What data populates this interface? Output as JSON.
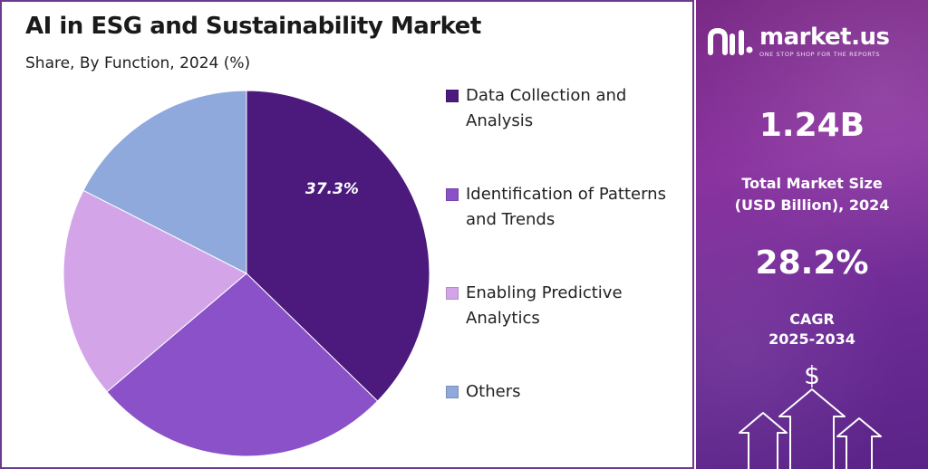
{
  "title": "AI in ESG and Sustainability Market",
  "subtitle": "Share, By Function, 2024 (%)",
  "chart_data": {
    "type": "pie",
    "title": "AI in ESG and Sustainability Market",
    "subtitle": "Share, By Function, 2024 (%)",
    "categories": [
      "Data Collection and Analysis",
      "Identification of Patterns and Trends",
      "Enabling Predictive Analytics",
      "Others"
    ],
    "legend_lines": [
      [
        "Data Collection and",
        "Analysis"
      ],
      [
        "Identification of Patterns",
        "and Trends"
      ],
      [
        "Enabling Predictive",
        "Analytics"
      ],
      [
        "Others"
      ]
    ],
    "values": [
      37.3,
      26.5,
      18.7,
      17.5
    ],
    "colors": [
      "#4b1a7c",
      "#8b51c9",
      "#d3a5e8",
      "#8fa9dc"
    ],
    "data_labels": [
      "37.3%",
      "",
      "",
      ""
    ],
    "legend_position": "right",
    "start_angle_deg": 0,
    "direction": "clockwise"
  },
  "side_panel": {
    "brand_name": "market.us",
    "brand_tagline": "ONE STOP SHOP FOR THE REPORTS",
    "market_size_value": "1.24B",
    "market_size_label_line1": "Total Market Size",
    "market_size_label_line2": "(USD Billion), 2024",
    "cagr_value": "28.2%",
    "cagr_label_line1": "CAGR",
    "cagr_label_line2": "2025-2034",
    "currency_symbol": "$"
  }
}
